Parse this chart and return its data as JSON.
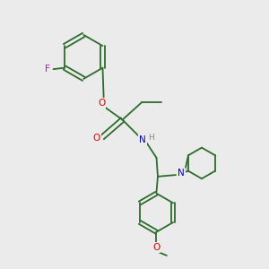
{
  "background_color": "#ebebeb",
  "bond_color": "#2d6b2d",
  "atom_colors": {
    "O": "#e00000",
    "N": "#0000cc",
    "F": "#cc00cc",
    "H": "#888888"
  },
  "figsize": [
    3.0,
    3.0
  ],
  "dpi": 100
}
